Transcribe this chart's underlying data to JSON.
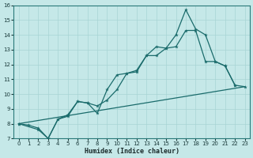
{
  "xlabel": "Humidex (Indice chaleur)",
  "xlim": [
    -0.5,
    23.5
  ],
  "ylim": [
    7,
    16
  ],
  "xticks": [
    0,
    1,
    2,
    3,
    4,
    5,
    6,
    7,
    8,
    9,
    10,
    11,
    12,
    13,
    14,
    15,
    16,
    17,
    18,
    19,
    20,
    21,
    22,
    23
  ],
  "yticks": [
    7,
    8,
    9,
    10,
    11,
    12,
    13,
    14,
    15,
    16
  ],
  "bg_color": "#c5e8e8",
  "grid_color": "#a8d4d4",
  "line_color": "#1a6b6b",
  "line1": {
    "x": [
      0,
      1,
      2,
      3,
      4,
      5,
      6,
      7,
      8,
      9,
      10,
      11,
      12,
      13,
      14,
      15,
      16,
      17,
      18,
      19,
      20,
      21,
      22
    ],
    "y": [
      8.0,
      7.9,
      7.7,
      7.0,
      8.3,
      8.6,
      9.5,
      9.4,
      8.7,
      10.3,
      11.3,
      11.4,
      11.6,
      12.6,
      13.2,
      13.1,
      14.0,
      15.7,
      14.4,
      14.0,
      12.2,
      11.9,
      10.6
    ]
  },
  "line2": {
    "x": [
      0,
      2,
      3,
      4,
      5,
      6,
      7,
      8,
      9,
      10,
      11,
      12,
      13,
      14,
      15,
      16,
      17,
      18,
      19,
      20,
      21,
      22,
      23
    ],
    "y": [
      8.0,
      7.6,
      7.0,
      8.3,
      8.5,
      9.5,
      9.4,
      9.2,
      9.6,
      10.3,
      11.4,
      11.5,
      12.6,
      12.6,
      13.1,
      13.2,
      14.3,
      14.3,
      12.2,
      12.2,
      11.9,
      10.6,
      10.5
    ]
  },
  "line3": {
    "x": [
      0,
      23
    ],
    "y": [
      8.0,
      10.5
    ]
  }
}
